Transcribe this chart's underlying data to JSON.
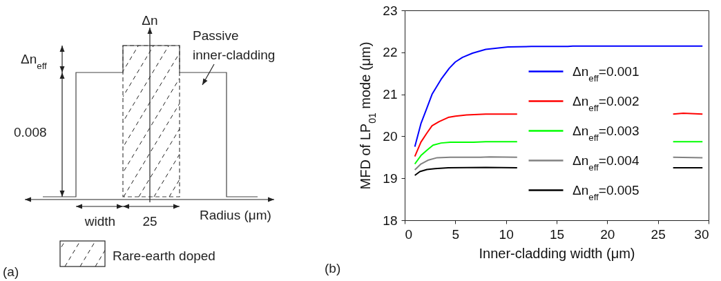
{
  "chart_data": [
    {
      "type": "other",
      "annotations": [
        "Δn",
        "Δn$_{eff}$",
        "0.008",
        "Passive inner-cladding",
        "width",
        "25",
        "Radius (μm)",
        "Rare-earth doped",
        "(a)"
      ]
    },
    {
      "type": "line",
      "xlabel": "Inner-cladding width (μm)",
      "ylabel": "MFD of LP$_{01}$ mode  (μm)",
      "xlim": [
        0,
        30
      ],
      "xticks": [
        0,
        5,
        10,
        15,
        20,
        25,
        30
      ],
      "ylim": [
        18,
        23
      ],
      "yticks": [
        18,
        19,
        20,
        21,
        22,
        23
      ],
      "grid": false,
      "legend": "right",
      "annotations": [
        "(b)"
      ],
      "series": [
        {
          "name": "Δn$_{eff}$=0.001",
          "color": "#0000ff",
          "x": [
            1.0,
            1.6,
            2.2,
            2.7,
            3.6,
            4.4,
            5.0,
            5.7,
            6.7,
            8.0,
            9.1,
            10.2,
            12.5,
            16.1,
            16.6,
            29.4
          ],
          "values": [
            19.75,
            20.3,
            20.68,
            21.0,
            21.36,
            21.62,
            21.77,
            21.88,
            21.98,
            22.07,
            22.1,
            22.13,
            22.14,
            22.14,
            22.15,
            22.15
          ]
        },
        {
          "name": "Δn$_{eff}$=0.002",
          "color": "#ff0000",
          "x": [
            1.0,
            1.6,
            2.2,
            2.7,
            3.4,
            4.3,
            5.0,
            6.1,
            8.0,
            11.1,
            18.0,
            26.5,
            27.5,
            29.4
          ],
          "values": [
            19.52,
            19.86,
            20.08,
            20.25,
            20.35,
            20.45,
            20.48,
            20.51,
            20.53,
            20.53,
            null,
            20.53,
            20.55,
            20.53
          ]
        },
        {
          "name": "Δn$_{eff}$=0.003",
          "color": "#00ff00",
          "x": [
            1.0,
            1.6,
            2.2,
            2.8,
            3.6,
            4.5,
            6.8,
            8.0,
            11.1,
            18.0,
            26.5,
            29.4
          ],
          "values": [
            19.34,
            19.54,
            19.67,
            19.79,
            19.84,
            19.86,
            19.86,
            19.87,
            19.87,
            null,
            19.87,
            19.87
          ]
        },
        {
          "name": "Δn$_{eff}$=0.004",
          "color": "#808080",
          "x": [
            1.0,
            1.6,
            2.3,
            3.2,
            4.5,
            7.5,
            8.4,
            11.1,
            18.0,
            26.5,
            29.4
          ],
          "values": [
            19.2,
            19.34,
            19.43,
            19.49,
            19.5,
            19.5,
            19.51,
            19.5,
            null,
            19.5,
            19.49
          ]
        },
        {
          "name": "Δn$_{eff}$=0.005",
          "color": "#000000",
          "x": [
            1.0,
            1.5,
            2.2,
            3.0,
            4.3,
            8.0,
            11.1,
            18.0,
            26.5,
            29.4
          ],
          "values": [
            19.07,
            19.16,
            19.21,
            19.23,
            19.25,
            19.26,
            19.25,
            null,
            19.25,
            19.25
          ]
        }
      ]
    }
  ]
}
